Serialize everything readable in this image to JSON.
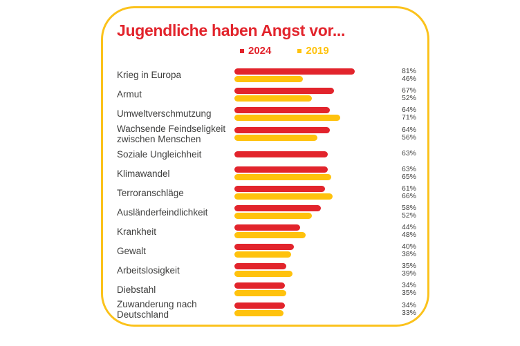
{
  "title": "Jugendliche haben Angst vor...",
  "legend": {
    "items": [
      {
        "label": "2024",
        "color": "#E2242C"
      },
      {
        "label": "2019",
        "color": "#FFC20D"
      }
    ]
  },
  "colors": {
    "bar_2024": "#E2242C",
    "bar_2019": "#FFC20D",
    "card_border": "#FBC21B",
    "title": "#E2242C",
    "text": "#3E3E3D",
    "background": "#FFFFFF"
  },
  "chart_data": {
    "type": "bar",
    "orientation": "horizontal",
    "title": "Jugendliche haben Angst vor...",
    "unit": "%",
    "legend_position": "top",
    "grid": false,
    "xlim": [
      0,
      100
    ],
    "categories": [
      "Krieg in Europa",
      "Armut",
      "Umweltverschmutzung",
      "Wachsende Feindseligkeit zwischen Menschen",
      "Soziale Ungleichheit",
      "Klimawandel",
      "Terroranschläge",
      "Ausländerfeindlichkeit",
      "Krankheit",
      "Gewalt",
      "Arbeitslosigkeit",
      "Diebstahl",
      "Zuwanderung nach Deutschland"
    ],
    "series": [
      {
        "name": "2024",
        "color": "#E2242C",
        "values": [
          81,
          67,
          64,
          64,
          63,
          63,
          61,
          58,
          44,
          40,
          35,
          34,
          34
        ]
      },
      {
        "name": "2019",
        "color": "#FFC20D",
        "values": [
          46,
          52,
          71,
          56,
          null,
          65,
          66,
          52,
          48,
          38,
          39,
          35,
          33
        ]
      }
    ]
  }
}
